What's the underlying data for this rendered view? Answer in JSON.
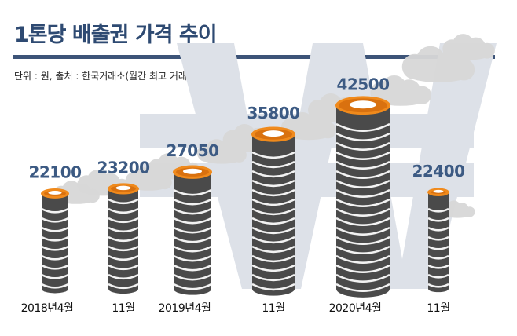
{
  "header": {
    "title": "1톤당 배출권 가격 추이",
    "subtitle": "단위 : 원, 출처 : 한국거래소(월간 최고 거래가)"
  },
  "colors": {
    "title": "#2e4a72",
    "value_label": "#3c5a83",
    "cylinder_dark": "#4a4a4a",
    "cylinder_stripe": "#f2f2f2",
    "cylinder_top": "#f08a1c",
    "smoke": "#d8d8d8",
    "watermark": "#dde1e8"
  },
  "watermark": {
    "icon": "won-sign-icon"
  },
  "chart_data": {
    "type": "bar",
    "title": "1톤당 배출권 가격 추이",
    "subtitle": "단위 : 원, 출처 : 한국거래소(월간 최고 거래가)",
    "categories": [
      "2018년4월",
      "11월",
      "2019년4월",
      "11월",
      "2020년4월",
      "11월"
    ],
    "values": [
      22100,
      23200,
      27050,
      35800,
      42500,
      22400
    ],
    "value_labels": [
      "22100",
      "23200",
      "27050",
      "35800",
      "42500",
      "22400"
    ],
    "xlabel": "",
    "ylabel": "",
    "grid": false,
    "legend": "none"
  }
}
